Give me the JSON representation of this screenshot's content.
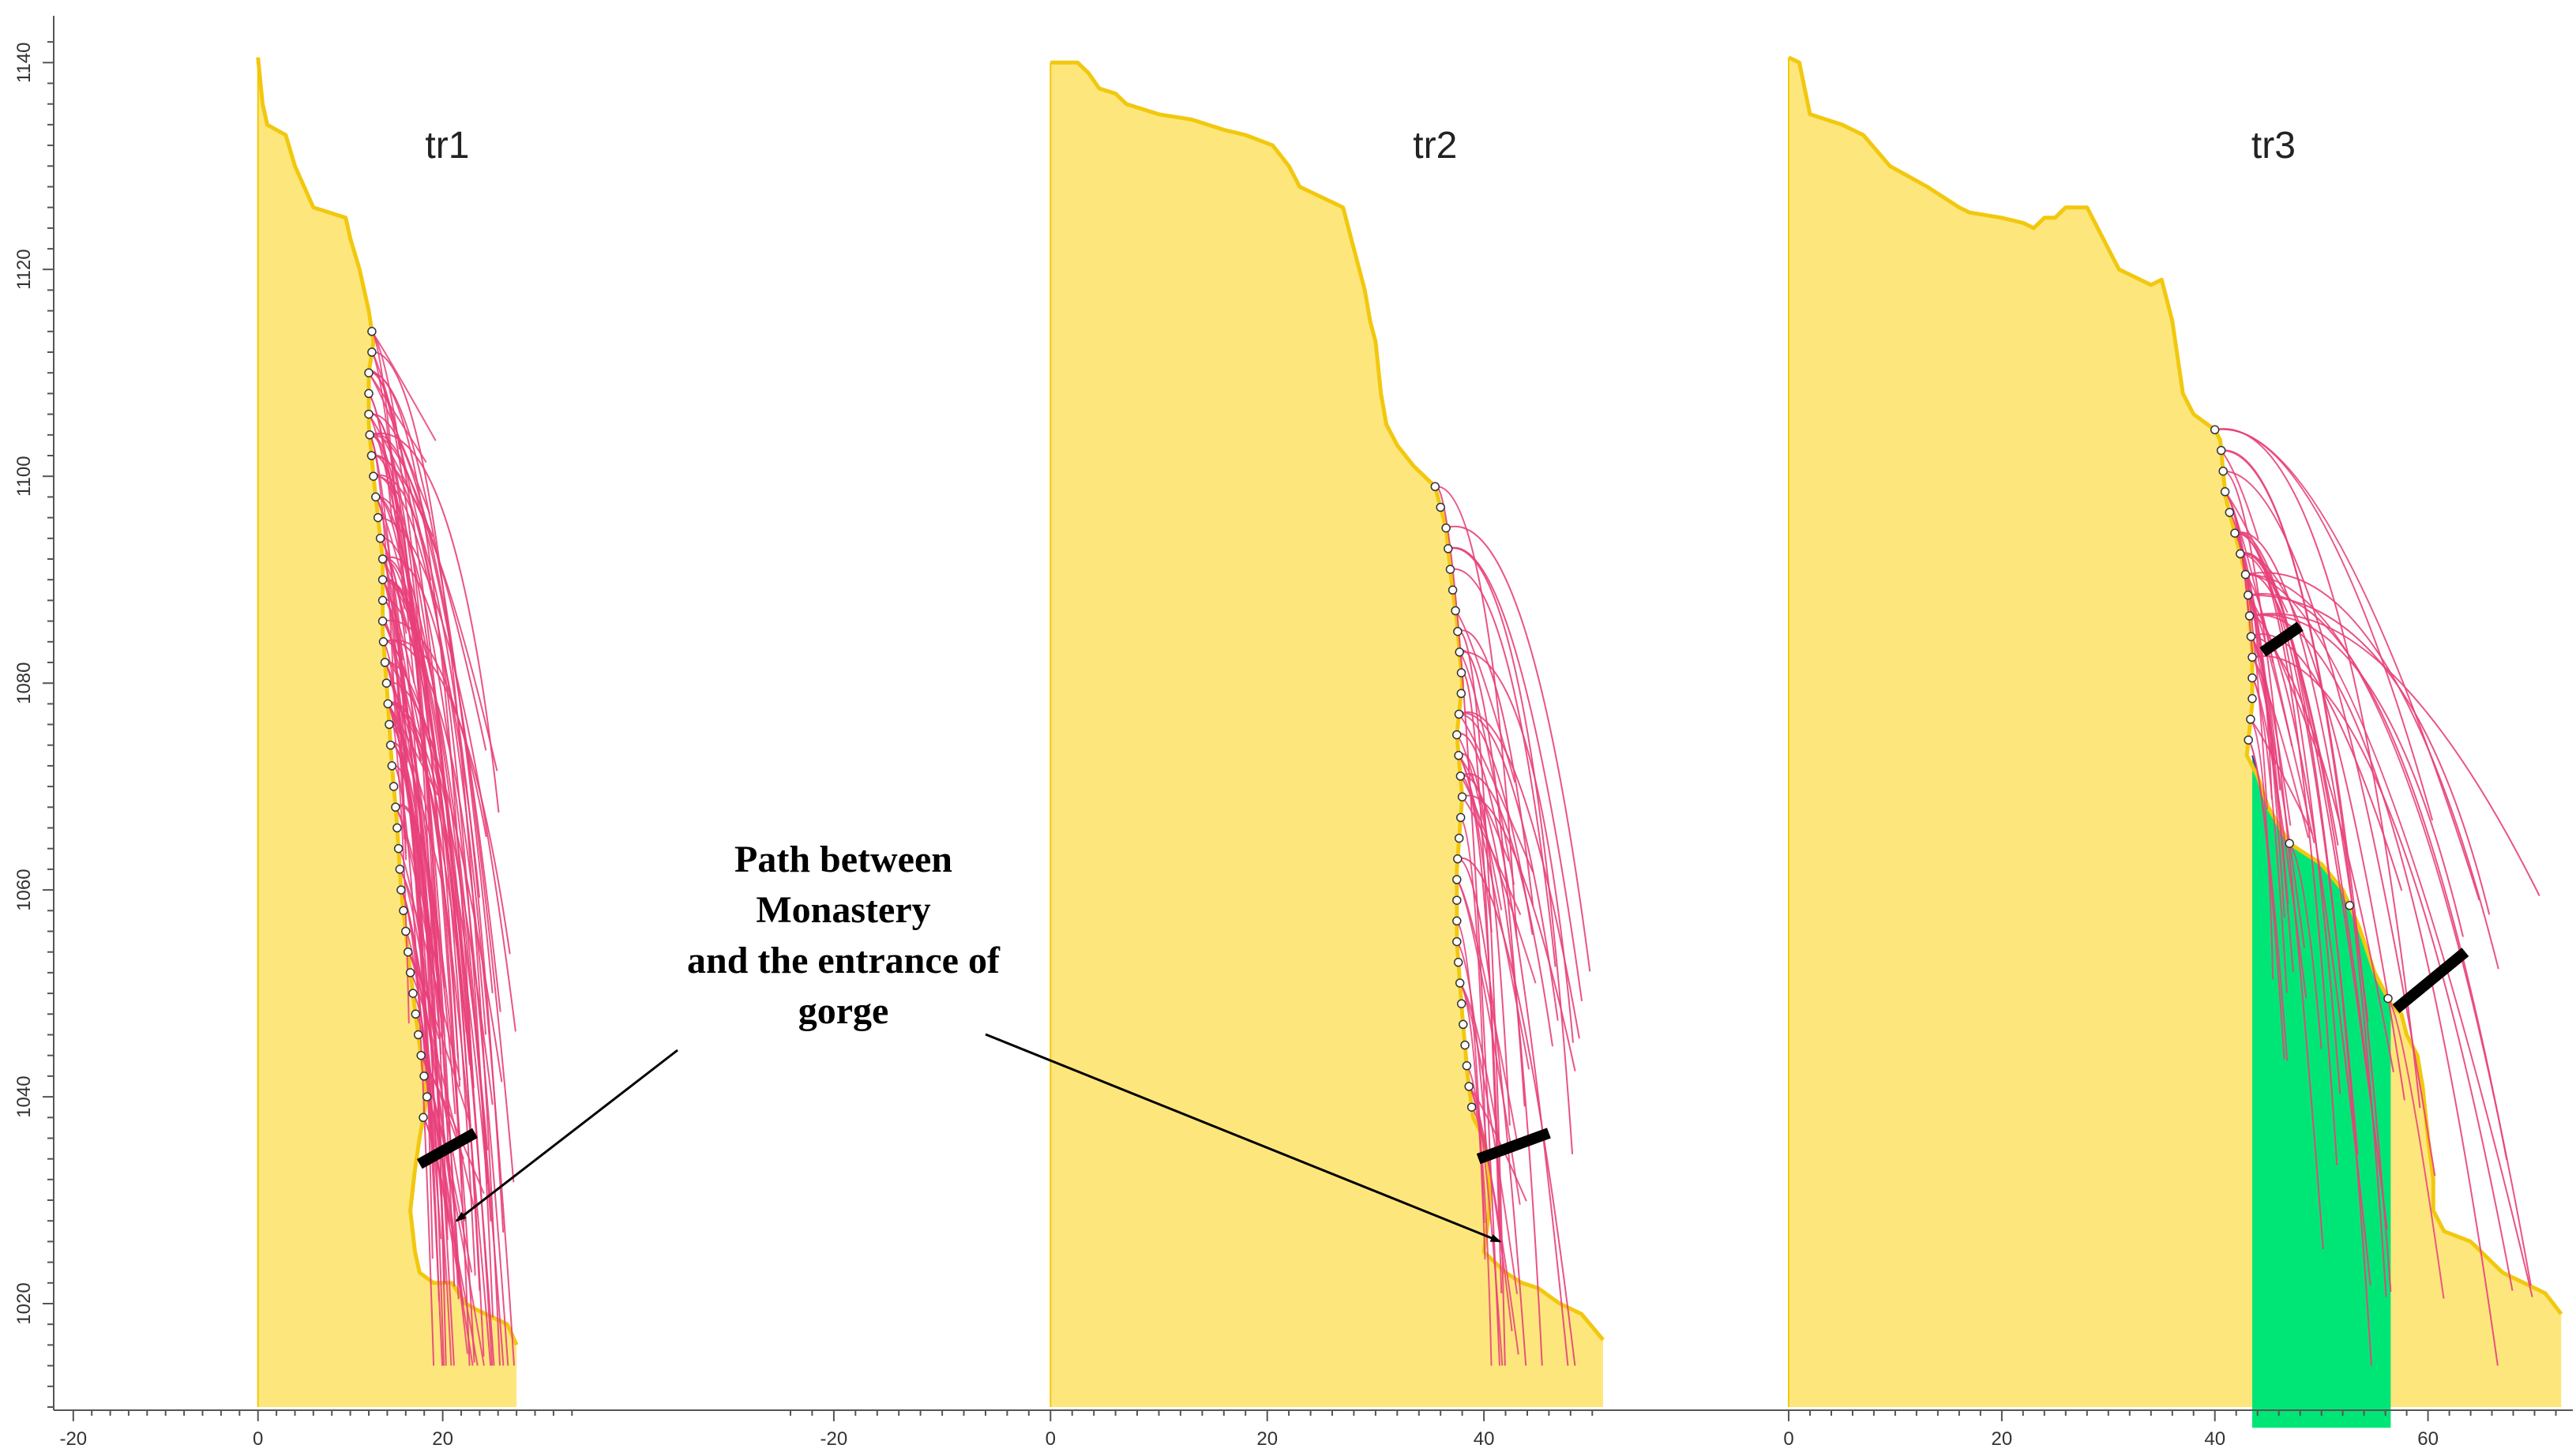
{
  "chart_data": {
    "type": "area",
    "y_ticks": [
      1020,
      1040,
      1060,
      1080,
      1100,
      1120,
      1140
    ],
    "ylim": [
      1010,
      1143
    ],
    "grid": false,
    "colors": {
      "terrain_fill": "#fde77c",
      "terrain_line": "#f2c80f",
      "trajectory": "#e8407a",
      "endpoint": "#ffffff",
      "barrier": "#000000",
      "deposit_fill": "#00e676"
    },
    "panels": [
      {
        "title": "tr1",
        "xlim": [
          -24,
          35
        ],
        "x_ticks": [
          -20,
          0,
          20
        ],
        "profile": [
          [
            0,
            1140.5
          ],
          [
            0.5,
            1136
          ],
          [
            1,
            1134
          ],
          [
            3,
            1133
          ],
          [
            4,
            1130
          ],
          [
            5.5,
            1127
          ],
          [
            6,
            1126
          ],
          [
            9.5,
            1125
          ],
          [
            10,
            1123
          ],
          [
            11,
            1120
          ],
          [
            12,
            1116
          ],
          [
            12.5,
            1113
          ],
          [
            12,
            1110
          ],
          [
            12,
            1105
          ],
          [
            12.5,
            1100
          ],
          [
            13.5,
            1092
          ],
          [
            13.5,
            1085
          ],
          [
            14,
            1079
          ],
          [
            14.5,
            1072
          ],
          [
            15,
            1067
          ],
          [
            15.5,
            1060
          ],
          [
            16.5,
            1052
          ],
          [
            17.5,
            1045
          ],
          [
            18.3,
            1040
          ],
          [
            17.5,
            1036
          ],
          [
            17,
            1033
          ],
          [
            16.5,
            1029
          ],
          [
            17,
            1025
          ],
          [
            17.5,
            1023
          ],
          [
            19,
            1022
          ],
          [
            21,
            1022
          ],
          [
            22.5,
            1020
          ],
          [
            23.5,
            1019.5
          ],
          [
            27,
            1018
          ],
          [
            28,
            1016
          ]
        ],
        "endpoints_y": [
          1114,
          1112,
          1110,
          1108,
          1106,
          1104,
          1102,
          1100,
          1098,
          1096,
          1094,
          1092,
          1090,
          1088,
          1086,
          1084,
          1082,
          1080,
          1078,
          1076,
          1074,
          1072,
          1070,
          1068,
          1066,
          1064,
          1062,
          1060,
          1058,
          1056,
          1054,
          1052,
          1050,
          1048,
          1046,
          1044,
          1042,
          1040,
          1038
        ],
        "barrier": [
          [
            17.5,
            1033.5
          ],
          [
            23.5,
            1036.5
          ]
        ],
        "trajectory_count": 60,
        "trajectory_max_x": 28.5
      },
      {
        "title": "tr2",
        "xlim": [
          -24,
          51
        ],
        "x_ticks": [
          -20,
          0,
          20,
          40
        ],
        "profile": [
          [
            0,
            1140
          ],
          [
            2.5,
            1140
          ],
          [
            3.5,
            1139
          ],
          [
            4.5,
            1137.5
          ],
          [
            6,
            1137
          ],
          [
            7,
            1136
          ],
          [
            10,
            1135
          ],
          [
            13,
            1134.5
          ],
          [
            16,
            1133.5
          ],
          [
            18,
            1133
          ],
          [
            20.5,
            1132
          ],
          [
            22,
            1130
          ],
          [
            23,
            1128
          ],
          [
            27,
            1126
          ],
          [
            28,
            1122
          ],
          [
            29,
            1118
          ],
          [
            29.5,
            1115
          ],
          [
            30,
            1113
          ],
          [
            30.5,
            1108
          ],
          [
            31,
            1105
          ],
          [
            32,
            1103
          ],
          [
            33.5,
            1101
          ],
          [
            35.5,
            1099
          ],
          [
            36.5,
            1095
          ],
          [
            37,
            1090
          ],
          [
            37.5,
            1086
          ],
          [
            38,
            1080
          ],
          [
            37.5,
            1075
          ],
          [
            38,
            1069
          ],
          [
            37.5,
            1062
          ],
          [
            37.5,
            1055
          ],
          [
            38,
            1048
          ],
          [
            38.5,
            1042
          ],
          [
            39,
            1038
          ],
          [
            40,
            1036
          ],
          [
            40.5,
            1033
          ],
          [
            40.5,
            1029
          ],
          [
            40,
            1025
          ],
          [
            42,
            1023
          ],
          [
            43.5,
            1022
          ],
          [
            45,
            1021.5
          ],
          [
            47,
            1020
          ],
          [
            49,
            1019
          ],
          [
            51,
            1016.5
          ]
        ],
        "endpoints_y": [
          1099,
          1097,
          1095,
          1093,
          1091,
          1089,
          1087,
          1085,
          1083,
          1081,
          1079,
          1077,
          1075,
          1073,
          1071,
          1069,
          1067,
          1065,
          1063,
          1061,
          1059,
          1057,
          1055,
          1053,
          1051,
          1049,
          1047,
          1045,
          1043,
          1041,
          1039
        ],
        "barrier": [
          [
            39.5,
            1034
          ],
          [
            46,
            1036.5
          ]
        ],
        "trajectory_count": 22,
        "trajectory_max_x": 50
      },
      {
        "title": "tr3",
        "xlim": [
          0,
          73
        ],
        "x_ticks": [
          0,
          20,
          40,
          60
        ],
        "profile": [
          [
            0,
            1140.5
          ],
          [
            1,
            1140
          ],
          [
            2,
            1135
          ],
          [
            5,
            1134
          ],
          [
            7,
            1133
          ],
          [
            9.5,
            1130
          ],
          [
            13,
            1128
          ],
          [
            16,
            1126
          ],
          [
            17,
            1125.5
          ],
          [
            20,
            1125
          ],
          [
            22,
            1124.5
          ],
          [
            23,
            1124
          ],
          [
            24,
            1125
          ],
          [
            25,
            1125
          ],
          [
            26,
            1126
          ],
          [
            27,
            1126
          ],
          [
            28,
            1126
          ],
          [
            29,
            1124
          ],
          [
            30,
            1122
          ],
          [
            31,
            1120
          ],
          [
            33,
            1119
          ],
          [
            34,
            1118.5
          ],
          [
            35,
            1119
          ],
          [
            36,
            1115
          ],
          [
            37,
            1108
          ],
          [
            38,
            1106
          ],
          [
            40,
            1104.5
          ],
          [
            40.5,
            1103.5
          ],
          [
            41,
            1098
          ],
          [
            42,
            1094
          ],
          [
            43,
            1090
          ],
          [
            43.5,
            1083
          ],
          [
            43.5,
            1078
          ],
          [
            43,
            1073
          ],
          [
            44,
            1071
          ],
          [
            45,
            1068
          ],
          [
            47,
            1064.5
          ],
          [
            50,
            1062.5
          ],
          [
            52,
            1060
          ],
          [
            53.5,
            1056.5
          ],
          [
            55,
            1052
          ],
          [
            56.5,
            1049
          ],
          [
            57.5,
            1048
          ],
          [
            58,
            1046
          ],
          [
            59,
            1044
          ],
          [
            59.5,
            1041
          ],
          [
            60,
            1036
          ],
          [
            60.5,
            1032
          ],
          [
            60.5,
            1029
          ],
          [
            61.5,
            1027
          ],
          [
            64,
            1026
          ],
          [
            65.5,
            1024.5
          ],
          [
            67,
            1023
          ],
          [
            69,
            1022
          ],
          [
            71,
            1021
          ],
          [
            72.5,
            1019
          ]
        ],
        "deposit": [
          [
            43.5,
            1073
          ],
          [
            45,
            1068
          ],
          [
            47,
            1064.5
          ],
          [
            50,
            1062.5
          ],
          [
            52,
            1060
          ],
          [
            53.5,
            1056.5
          ],
          [
            55,
            1052
          ],
          [
            56.5,
            1049
          ],
          [
            56.5,
            1008
          ],
          [
            43.5,
            1008
          ]
        ],
        "endpoints_y": [
          1104.5,
          1102.5,
          1100.5,
          1098.5,
          1096.5,
          1094.5,
          1092.5,
          1090.5,
          1088.5,
          1086.5,
          1084.5,
          1082.5,
          1080.5,
          1078.5,
          1076.5,
          1074.5,
          1064.5,
          1058.5,
          1049.5
        ],
        "barriers": [
          [
            [
              44.5,
              1083
            ],
            [
              48,
              1085.5
            ]
          ],
          [
            [
              57,
              1048.5
            ],
            [
              63.5,
              1054
            ]
          ]
        ],
        "trajectory_count": 28,
        "trajectory_max_x": 72
      }
    ],
    "annotation": {
      "lines": [
        "Path between",
        "Monastery",
        "and the entrance of",
        "gorge"
      ],
      "arrows": [
        {
          "panel": 0,
          "to": [
            21.5,
            1028
          ]
        },
        {
          "panel": 1,
          "to": [
            41.5,
            1026
          ]
        }
      ]
    }
  }
}
